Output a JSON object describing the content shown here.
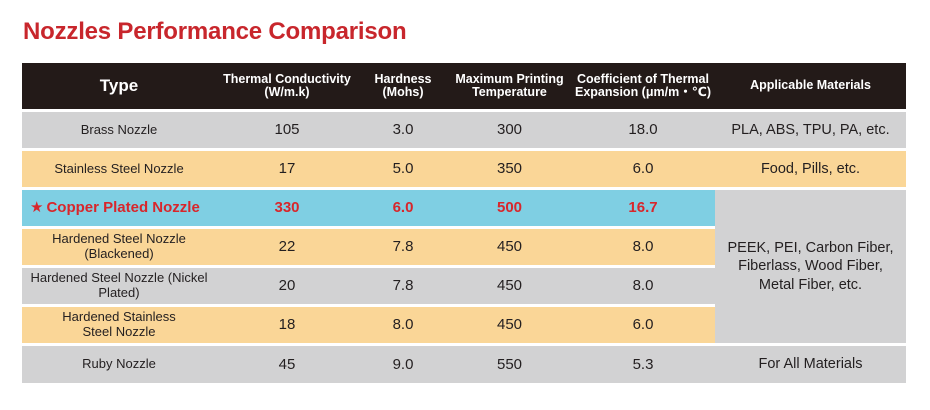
{
  "title": "Nozzles Performance Comparison",
  "headers": {
    "type": "Type",
    "thermal": "Thermal Conductivity (W/m.k)",
    "hardness": "Hardness (Mohs)",
    "max_temp": "Maximum Printing Temperature",
    "cte": "Coefficient of Thermal Expansion (μm/m・℃)",
    "materials": "Applicable Materials"
  },
  "rows": [
    {
      "type": "Brass Nozzle",
      "thermal": "105",
      "hardness": "3.0",
      "max_temp": "300",
      "cte": "18.0",
      "materials": "PLA, ABS, TPU, PA, etc."
    },
    {
      "type": "Stainless Steel Nozzle",
      "thermal": "17",
      "hardness": "5.0",
      "max_temp": "350",
      "cte": "6.0",
      "materials": "Food, Pills, etc."
    },
    {
      "type": "Copper Plated Nozzle",
      "star": "★",
      "thermal": "330",
      "hardness": "6.0",
      "max_temp": "500",
      "cte": "16.7"
    },
    {
      "type": "Hardened Steel Nozzle (Blackened)",
      "thermal": "22",
      "hardness": "7.8",
      "max_temp": "450",
      "cte": "8.0"
    },
    {
      "type": "Hardened Steel Nozzle (Nickel Plated)",
      "thermal": "20",
      "hardness": "7.8",
      "max_temp": "450",
      "cte": "8.0"
    },
    {
      "type": "Hardened Stainless Steel Nozzle",
      "thermal": "18",
      "hardness": "8.0",
      "max_temp": "450",
      "cte": "6.0"
    },
    {
      "type": "Ruby Nozzle",
      "thermal": "45",
      "hardness": "9.0",
      "max_temp": "550",
      "cte": "5.3",
      "materials": "For All Materials"
    }
  ],
  "merged_materials": "PEEK, PEI, Carbon Fiber, Fiberlass, Wood Fiber, Metal Fiber, etc.",
  "colors": {
    "title": "#c8262c",
    "header_bg": "#231a18",
    "grey_row": "#d2d2d3",
    "peach_row": "#fad697",
    "highlight_row": "#7fcfe3",
    "highlight_text": "#d8262b"
  }
}
